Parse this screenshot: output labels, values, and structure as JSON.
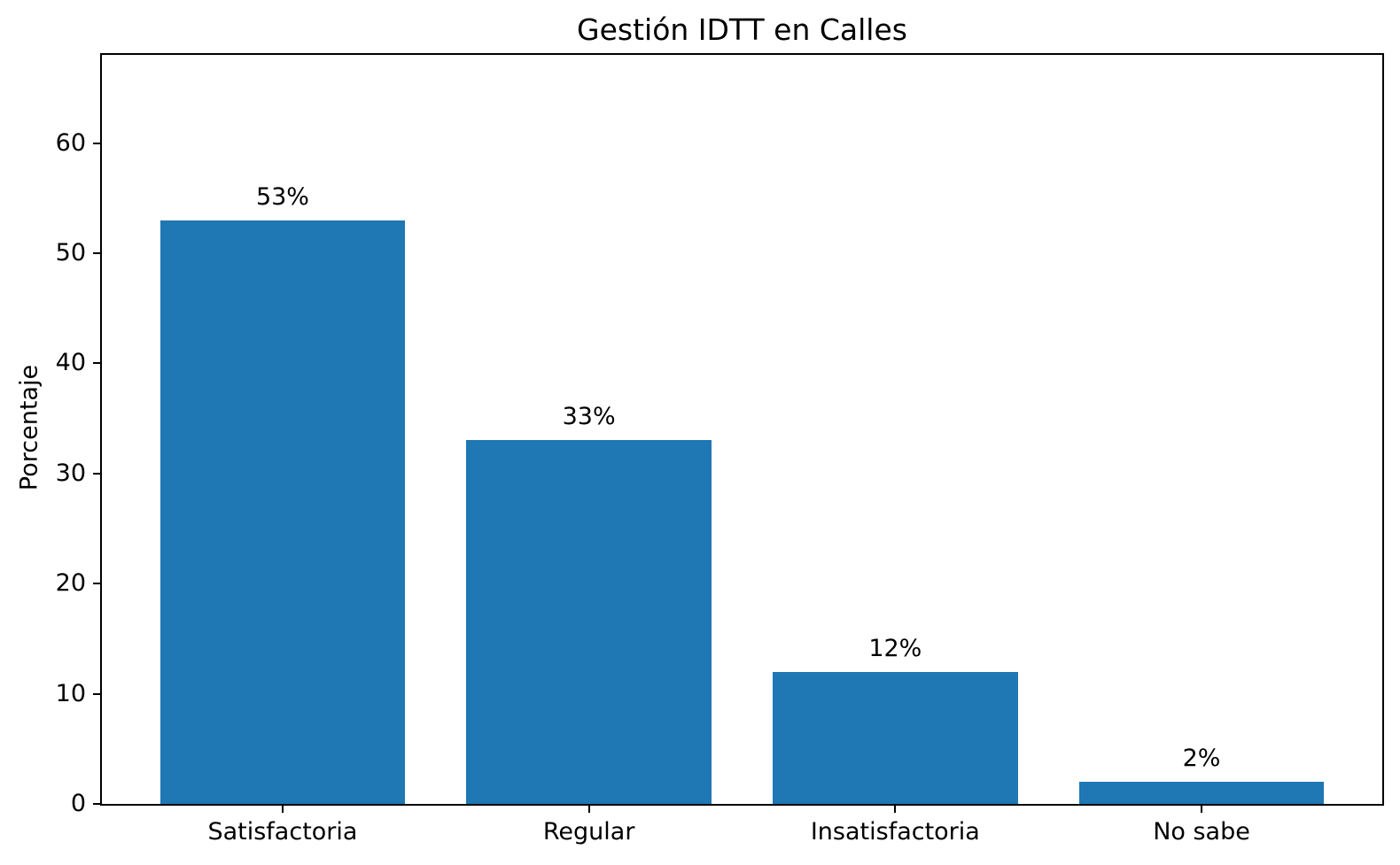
{
  "figure": {
    "background": "#ffffff",
    "text_color": "#000000"
  },
  "chart_data": {
    "type": "bar",
    "title": "Gestión IDTT en Calles",
    "xlabel": "",
    "ylabel": "Porcentaje",
    "categories": [
      "Satisfactoria",
      "Regular",
      "Insatisfactoria",
      "No sabe"
    ],
    "values": [
      53,
      33,
      12,
      2
    ],
    "bar_labels": [
      "53%",
      "33%",
      "12%",
      "2%"
    ],
    "yticks": [
      0,
      10,
      20,
      30,
      40,
      50,
      60
    ],
    "ylim": [
      0,
      68
    ],
    "bar_color": "#1f77b4",
    "grid": false,
    "legend": null
  }
}
